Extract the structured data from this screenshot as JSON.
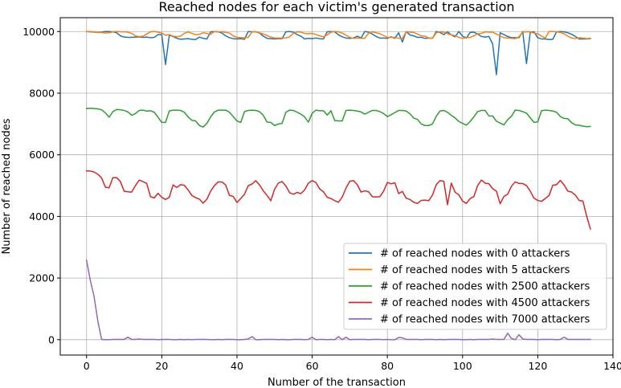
{
  "chart_data": {
    "type": "line",
    "title": "Reached nodes for each victim's generated transaction",
    "xlabel": "Number of the transaction",
    "ylabel": "Number of reached nodes",
    "xlim": [
      -7,
      140
    ],
    "ylim": [
      -500,
      10450
    ],
    "xticks": [
      0,
      20,
      40,
      60,
      80,
      100,
      120,
      140
    ],
    "yticks": [
      0,
      2000,
      4000,
      6000,
      8000,
      10000
    ],
    "xtick_labels": [
      "0",
      "20",
      "40",
      "60",
      "80",
      "100",
      "120",
      "140"
    ],
    "ytick_labels": [
      "0",
      "2000",
      "4000",
      "6000",
      "8000",
      "10000"
    ],
    "grid": true,
    "legend_position": "lower right",
    "x": [
      0,
      1,
      2,
      3,
      4,
      5,
      6,
      7,
      8,
      9,
      10,
      11,
      12,
      13,
      14,
      15,
      16,
      17,
      18,
      19,
      20,
      21,
      22,
      23,
      24,
      25,
      26,
      27,
      28,
      29,
      30,
      31,
      32,
      33,
      34,
      35,
      36,
      37,
      38,
      39,
      40,
      41,
      42,
      43,
      44,
      45,
      46,
      47,
      48,
      49,
      50,
      51,
      52,
      53,
      54,
      55,
      56,
      57,
      58,
      59,
      60,
      61,
      62,
      63,
      64,
      65,
      66,
      67,
      68,
      69,
      70,
      71,
      72,
      73,
      74,
      75,
      76,
      77,
      78,
      79,
      80,
      81,
      82,
      83,
      84,
      85,
      86,
      87,
      88,
      89,
      90,
      91,
      92,
      93,
      94,
      95,
      96,
      97,
      98,
      99,
      100,
      101,
      102,
      103,
      104,
      105,
      106,
      107,
      108,
      109,
      110,
      111,
      112,
      113,
      114,
      115,
      116,
      117,
      118,
      119,
      120,
      121,
      122,
      123,
      124,
      125,
      126,
      127,
      128,
      129,
      130,
      131,
      132,
      133,
      134
    ],
    "series": [
      {
        "name": "# of reached nodes with 0 attackers",
        "color": "#1f77b4",
        "values": [
          10000,
          9990,
          9980,
          9970,
          9980,
          10000,
          10000,
          9990,
          9960,
          9860,
          9820,
          9810,
          9810,
          9820,
          9820,
          9810,
          9820,
          9800,
          9810,
          9900,
          9900,
          8930,
          9880,
          9840,
          9780,
          9750,
          9760,
          9770,
          9750,
          9740,
          9820,
          9780,
          9760,
          9990,
          10000,
          9990,
          9950,
          9860,
          9800,
          9770,
          9760,
          9770,
          9750,
          10000,
          9990,
          9990,
          9950,
          9850,
          9780,
          9770,
          9760,
          9770,
          9770,
          9990,
          10000,
          9980,
          9900,
          9850,
          9760,
          9780,
          9770,
          9790,
          9770,
          9760,
          9990,
          10000,
          9990,
          9890,
          9830,
          9790,
          9780,
          9790,
          9850,
          9790,
          10000,
          9980,
          9920,
          9840,
          9790,
          9790,
          9780,
          9830,
          9780,
          9960,
          9660,
          10000,
          9890,
          9860,
          9810,
          9810,
          9780,
          9790,
          9780,
          10000,
          9970,
          9900,
          9990,
          9890,
          9830,
          10000,
          9850,
          9790,
          9970,
          9980,
          9920,
          9840,
          9820,
          9840,
          9600,
          8600,
          9960,
          9900,
          9840,
          9800,
          9800,
          9800,
          10000,
          8960,
          9980,
          9990,
          9800,
          9760,
          9760,
          9740,
          9750,
          9990,
          10000,
          9990,
          9960,
          9910,
          9840,
          9760,
          9760,
          9760,
          9770
        ]
      },
      {
        "name": "# of reached nodes with 5 attackers",
        "color": "#ff7f0e",
        "values": [
          10000,
          10000,
          9980,
          9970,
          9970,
          9950,
          9960,
          9990,
          10000,
          9990,
          9990,
          9980,
          9940,
          9860,
          9830,
          9850,
          9920,
          9990,
          10000,
          9980,
          9950,
          9880,
          9900,
          9850,
          9830,
          9850,
          9940,
          9990,
          9940,
          9900,
          9910,
          9960,
          9940,
          9910,
          10000,
          9990,
          9990,
          9970,
          9950,
          9860,
          9810,
          9800,
          9800,
          9810,
          9990,
          9990,
          9960,
          9920,
          9870,
          9820,
          9790,
          9790,
          9790,
          9790,
          9830,
          9940,
          9990,
          9980,
          9940,
          9930,
          9940,
          9900,
          9860,
          9830,
          9890,
          9980,
          10000,
          9990,
          9950,
          9880,
          9810,
          9780,
          9790,
          9780,
          9780,
          9950,
          9990,
          9960,
          9930,
          9870,
          9810,
          9810,
          9810,
          9780,
          9780,
          9990,
          9980,
          9970,
          9920,
          9860,
          9850,
          9790,
          9780,
          9960,
          9990,
          9980,
          9930,
          9890,
          9870,
          9810,
          9780,
          9800,
          9810,
          9860,
          9930,
          9940,
          9990,
          9980,
          9980,
          9920,
          9860,
          9800,
          9790,
          9780,
          9770,
          9830,
          9980,
          9990,
          9990,
          9950,
          9930,
          9850,
          9790,
          10000,
          10000,
          9990,
          9970,
          9930,
          9850,
          9790,
          9770,
          9800,
          9790,
          9770,
          9780
        ]
      },
      {
        "name": "# of reached nodes with 2500 attackers",
        "color": "#2ca02c",
        "values": [
          7500,
          7510,
          7500,
          7490,
          7460,
          7360,
          7220,
          7400,
          7470,
          7460,
          7440,
          7390,
          7280,
          7340,
          7440,
          7450,
          7420,
          7430,
          7380,
          7220,
          7050,
          7050,
          7420,
          7450,
          7450,
          7440,
          7380,
          7230,
          7120,
          7100,
          6950,
          6900,
          7020,
          7230,
          7390,
          7450,
          7450,
          7450,
          7380,
          7240,
          7100,
          7050,
          7400,
          7440,
          7450,
          7440,
          7400,
          7280,
          7060,
          7050,
          6950,
          7000,
          7020,
          7380,
          7450,
          7440,
          7380,
          7320,
          7230,
          7060,
          7350,
          7450,
          7430,
          7430,
          7290,
          7430,
          7110,
          7100,
          7100,
          7440,
          7450,
          7440,
          7420,
          7390,
          7320,
          7380,
          7440,
          7440,
          7400,
          7340,
          7240,
          7300,
          7370,
          7440,
          7440,
          7420,
          7330,
          7190,
          7150,
          7000,
          6950,
          6950,
          7000,
          7250,
          7420,
          7440,
          7380,
          7280,
          7200,
          7080,
          7020,
          6960,
          7080,
          7230,
          7400,
          7440,
          7440,
          7260,
          7260,
          7090,
          7030,
          6970,
          7140,
          7250,
          7450,
          7440,
          7400,
          7350,
          7200,
          7050,
          7070,
          7430,
          7450,
          7440,
          7420,
          7380,
          7240,
          7180,
          7170,
          7040,
          6970,
          6960,
          6930,
          6910,
          6920
        ]
      },
      {
        "name": "# of reached nodes with 4500 attackers",
        "color": "#d62728",
        "values": [
          5480,
          5470,
          5440,
          5370,
          5250,
          4950,
          4930,
          5260,
          5260,
          5130,
          4820,
          4800,
          4790,
          5000,
          5180,
          5130,
          5070,
          4640,
          4600,
          4750,
          4620,
          4550,
          4620,
          5020,
          4940,
          5030,
          5010,
          4860,
          4680,
          4610,
          4560,
          4430,
          4560,
          4820,
          5000,
          5120,
          5120,
          5020,
          4680,
          4650,
          4450,
          4580,
          4720,
          5000,
          5050,
          5160,
          5020,
          4830,
          4680,
          4510,
          4880,
          5080,
          5130,
          4990,
          4770,
          4720,
          4780,
          4740,
          4860,
          5080,
          5160,
          5100,
          4890,
          4800,
          4620,
          4580,
          4510,
          4460,
          4630,
          4920,
          5140,
          5160,
          5030,
          4790,
          4830,
          4800,
          4640,
          4630,
          4640,
          4820,
          5100,
          5060,
          5090,
          4740,
          4810,
          4590,
          4550,
          4460,
          4420,
          4520,
          4530,
          4510,
          4690,
          5030,
          5160,
          5140,
          4380,
          5080,
          4790,
          4700,
          4500,
          4420,
          4580,
          4640,
          5000,
          5180,
          5080,
          5060,
          4900,
          4820,
          4410,
          4650,
          4720,
          4980,
          5120,
          5070,
          5070,
          5000,
          4820,
          4590,
          4520,
          4490,
          4580,
          4680,
          5010,
          5030,
          5170,
          5020,
          4820,
          4790,
          4690,
          4520,
          4500,
          4010,
          3590
        ]
      },
      {
        "name": "# of reached nodes with 7000 attackers",
        "color": "#9467bd",
        "values": [
          2580,
          1920,
          1400,
          600,
          10,
          0,
          0,
          10,
          10,
          10,
          10,
          80,
          10,
          10,
          20,
          10,
          10,
          10,
          10,
          0,
          10,
          10,
          10,
          0,
          0,
          10,
          0,
          10,
          0,
          10,
          10,
          10,
          10,
          0,
          0,
          10,
          0,
          10,
          10,
          10,
          0,
          0,
          10,
          20,
          100,
          0,
          0,
          10,
          10,
          10,
          10,
          0,
          10,
          0,
          0,
          10,
          10,
          10,
          0,
          10,
          80,
          0,
          10,
          10,
          0,
          10,
          0,
          100,
          0,
          80,
          0,
          10,
          10,
          10,
          10,
          0,
          10,
          10,
          10,
          0,
          10,
          0,
          0,
          70,
          60,
          10,
          10,
          10,
          10,
          0,
          10,
          10,
          10,
          0,
          10,
          0,
          10,
          10,
          10,
          10,
          0,
          0,
          10,
          0,
          10,
          10,
          10,
          10,
          20,
          10,
          10,
          10,
          210,
          40,
          0,
          160,
          20,
          10,
          10,
          10,
          0,
          10,
          10,
          10,
          10,
          0,
          10,
          80,
          10,
          10,
          10,
          10,
          10,
          10,
          10
        ]
      }
    ]
  }
}
